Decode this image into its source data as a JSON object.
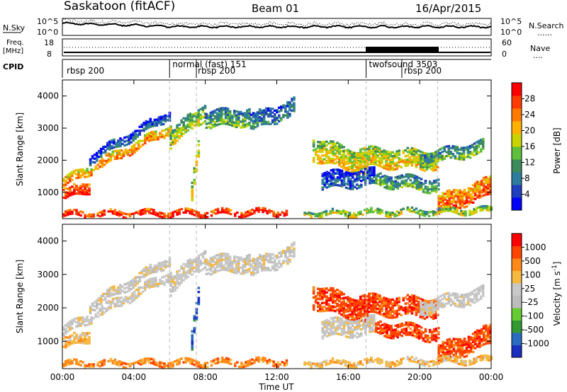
{
  "header": {
    "station": "Saskatoon (fitACF)",
    "beam": "Beam 01",
    "date": "16/Apr/2015"
  },
  "top_panels": {
    "nsky_label": "N.Sky",
    "nsearch_label": "N.Search",
    "nsearch_line": "......",
    "count_ticks_left": [
      "10^5",
      "10^0"
    ],
    "count_ticks_right": [
      "10^5",
      "10^0"
    ],
    "freq_label_line1": "Freq.",
    "freq_label_line2": "[MHz]",
    "freq_ticks": [
      "18",
      "8"
    ],
    "nave_ticks": [
      "60",
      "0"
    ],
    "nave_label": "Nave",
    "nave_line": "....",
    "cpid_label": "CPID"
  },
  "cpid_segments": [
    {
      "name": "rbsp 200",
      "start_h": 0,
      "end_h": 6
    },
    {
      "name": "normal (fast) 151",
      "start_h": 6,
      "end_h": 7.5
    },
    {
      "name": "rbsp 200",
      "start_h": 7.5,
      "end_h": 17
    },
    {
      "name": "twofsound 3503",
      "start_h": 17,
      "end_h": 21
    },
    {
      "name": "rbsp 200",
      "start_h": 19,
      "end_h": 21
    }
  ],
  "colors": {
    "power_scale": [
      "#0000ff",
      "#1f3fbf",
      "#2e7d9e",
      "#3d8b5a",
      "#5fbf3a",
      "#c8d400",
      "#ffb000",
      "#ff7a00",
      "#ff3c00",
      "#ff0000"
    ],
    "velocity_scale": [
      "#ff0000",
      "#ff4400",
      "#ff8a1a",
      "#f5b942",
      "#c8c8c8",
      "#bcbcbc",
      "#66cc33",
      "#339933",
      "#2a6bbf",
      "#1a2fbf"
    ]
  },
  "chart_data": [
    {
      "type": "heatmap",
      "title": "Power",
      "xlabel": "",
      "ylabel": "Slant Range [km]",
      "xlim": [
        0,
        24
      ],
      "ylim": [
        180,
        4500
      ],
      "yticks": [
        "4000",
        "3000",
        "2000",
        "1000"
      ],
      "colorbar_label": "Power [dB]",
      "colorbar_ticks": [
        "28",
        "24",
        "20",
        "16",
        "12",
        "8",
        "4"
      ]
    },
    {
      "type": "heatmap",
      "title": "Velocity",
      "xlabel": "Time UT",
      "ylabel": "Slant Range [km]",
      "xlim": [
        0,
        24
      ],
      "ylim": [
        180,
        4500
      ],
      "xticks": [
        "00:00",
        "04:00",
        "08:00",
        "12:00",
        "16:00",
        "20:00",
        "00:00"
      ],
      "yticks": [
        "4000",
        "3000",
        "2000",
        "1000"
      ],
      "colorbar_label": "Velocity [m s^-1]",
      "colorbar_ticks": [
        "1000",
        "500",
        "100",
        "25",
        "-25",
        "-100",
        "-500",
        "-1000"
      ]
    }
  ]
}
